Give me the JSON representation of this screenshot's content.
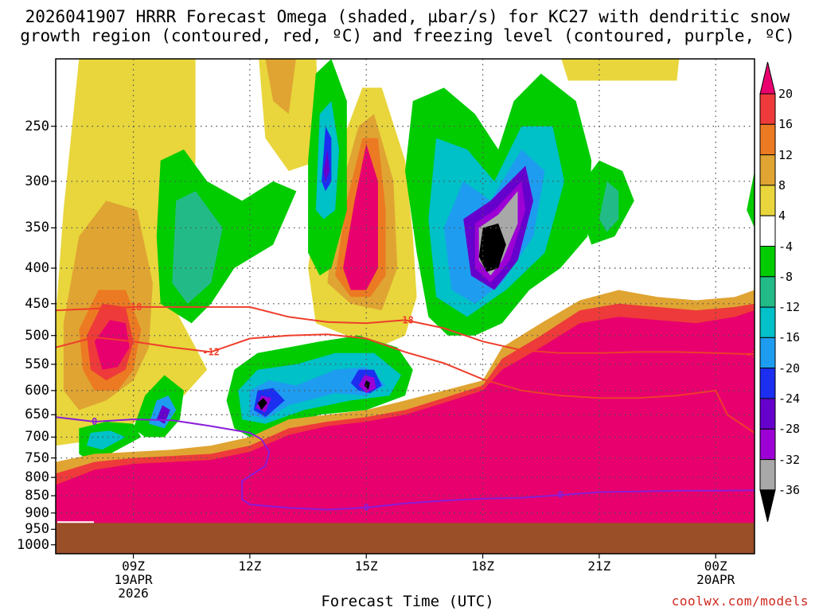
{
  "title_line1": "2026041907 HRRR Forecast Omega (shaded, µbar/s) for KC27 with dendritic snow",
  "title_line2": "growth region (contoured, red, ºC) and freezing level (contoured, purple, ºC)",
  "x_axis_title": "Forecast Time (UTC)",
  "credit": "coolwx.com/models",
  "chart_data": {
    "type": "heatmap",
    "y_axis": {
      "ticks": [
        250,
        300,
        350,
        400,
        450,
        500,
        550,
        600,
        650,
        700,
        750,
        800,
        850,
        900,
        950,
        1000
      ],
      "range": [
        1030,
        200
      ],
      "scale": "log"
    },
    "x_axis": {
      "range_hours": [
        7,
        25
      ],
      "ticks": [
        {
          "hour": 9,
          "labels": [
            "09Z",
            "19APR",
            "2026"
          ]
        },
        {
          "hour": 12,
          "labels": [
            "12Z"
          ]
        },
        {
          "hour": 15,
          "labels": [
            "15Z"
          ]
        },
        {
          "hour": 18,
          "labels": [
            "18Z"
          ]
        },
        {
          "hour": 21,
          "labels": [
            "21Z"
          ]
        },
        {
          "hour": 24,
          "labels": [
            "00Z",
            "20APR"
          ]
        }
      ]
    },
    "grid": true,
    "colorbar": {
      "labels": [
        "20",
        "16",
        "12",
        "8",
        "4",
        "-4",
        "-8",
        "-12",
        "-16",
        "-20",
        "-24",
        "-28",
        "-32",
        "-36"
      ],
      "colors": [
        "#e8006e",
        "#ee3a3a",
        "#ec7a22",
        "#e0a432",
        "#e8d63c",
        "#ffffff",
        "#00cc00",
        "#22bb88",
        "#00c0c8",
        "#1e9cf0",
        "#1c2ef0",
        "#6600cc",
        "#9c00d4",
        "#a8a8a8",
        "#000000"
      ]
    },
    "terrain_color": "#9a4f28",
    "contours": [
      {
        "name": "dendritic",
        "label": "-18",
        "color": "#ee3e2c",
        "points": [
          [
            7,
            460
          ],
          [
            9,
            455
          ],
          [
            11,
            455
          ],
          [
            12,
            455
          ],
          [
            13,
            470
          ],
          [
            14,
            478
          ],
          [
            15,
            480
          ],
          [
            16,
            475
          ],
          [
            17,
            488
          ],
          [
            18,
            510
          ],
          [
            19,
            525
          ],
          [
            20,
            530
          ],
          [
            21,
            530
          ],
          [
            22,
            528
          ],
          [
            23,
            528
          ],
          [
            24,
            530
          ],
          [
            25,
            532
          ]
        ]
      },
      {
        "name": "dendritic",
        "label": "-12",
        "color": "#ee3e2c",
        "points": [
          [
            7,
            520
          ],
          [
            8,
            503
          ],
          [
            9,
            510
          ],
          [
            10,
            520
          ],
          [
            11,
            528
          ],
          [
            12,
            505
          ],
          [
            13,
            500
          ],
          [
            14,
            498
          ],
          [
            15,
            505
          ],
          [
            16,
            528
          ],
          [
            17,
            548
          ],
          [
            18,
            578
          ],
          [
            19,
            600
          ],
          [
            20,
            610
          ],
          [
            21,
            615
          ],
          [
            22,
            615
          ],
          [
            23,
            610
          ],
          [
            24,
            600
          ],
          [
            24.3,
            650
          ],
          [
            25,
            690
          ]
        ]
      },
      {
        "name": "freezing_level",
        "label": "0",
        "color": "#8a1ed8",
        "points": [
          [
            7,
            655
          ],
          [
            8,
            665
          ],
          [
            9,
            660
          ],
          [
            10,
            662
          ],
          [
            11,
            675
          ],
          [
            12,
            690
          ],
          [
            12.3,
            705
          ],
          [
            12.5,
            735
          ],
          [
            12.4,
            770
          ],
          [
            11.8,
            810
          ],
          [
            11.8,
            860
          ],
          [
            12,
            875
          ],
          [
            13,
            885
          ],
          [
            14,
            890
          ],
          [
            15,
            884
          ],
          [
            16,
            872
          ],
          [
            17,
            864
          ],
          [
            18,
            858
          ],
          [
            19,
            856
          ],
          [
            20,
            848
          ],
          [
            21,
            840
          ],
          [
            22,
            838
          ],
          [
            23,
            836
          ],
          [
            24,
            836
          ],
          [
            25,
            835
          ]
        ]
      }
    ]
  }
}
